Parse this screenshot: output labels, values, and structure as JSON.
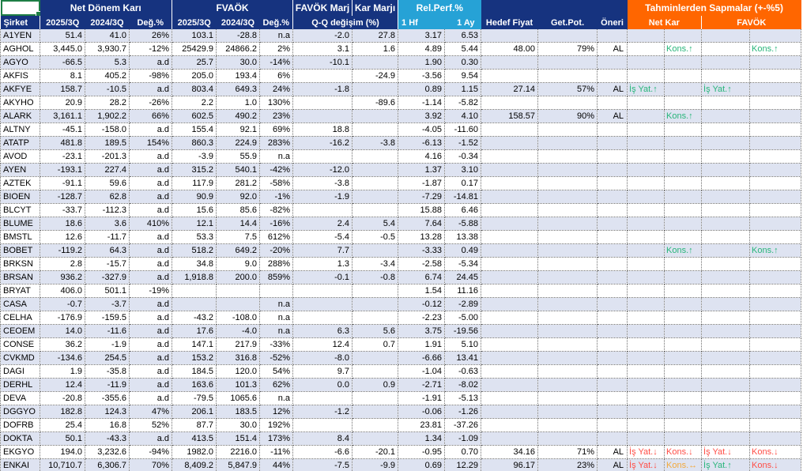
{
  "app": {
    "selected_cell": "A1"
  },
  "colors": {
    "header_navy": "#16337F",
    "header_cyan": "#26A2D6",
    "header_orange": "#FF6600",
    "row_band": "#DEE3F1",
    "deviation_up_green": "#28B57A",
    "deviation_down_red": "#FF4D45",
    "deviation_flat_amber": "#F2A93C",
    "selection_border_green": "#1E7E45"
  },
  "header": {
    "groups": {
      "net_donem_kari": "Net Dönem Karı",
      "fvaok": "FVAÖK",
      "favok_marj": "FAVÖK Marj",
      "kar_marji": "Kar Marjı",
      "rel_perf": "Rel.Perf.%",
      "tahmin": "Tahminlerden Sapmalar (+-%5)"
    },
    "cols": {
      "sirket": "Şirket",
      "q2025": "2025/3Q",
      "q2024": "2024/3Q",
      "deg": "Değ.%",
      "qq": "Q-Q değişim (%)",
      "hf1": "1 Hf",
      "ay1": "1 Ay",
      "hedef": "Hedef Fiyat",
      "getpot": "Get.Pot.",
      "oneri": "Öneri",
      "net_kar": "Net Kar",
      "favok": "FAVÖK"
    }
  },
  "rows": [
    {
      "co": "A1YEN",
      "nk25": "51.4",
      "nk24": "41.0",
      "nkd": "26%",
      "fv25": "103.1",
      "fv24": "-28.8",
      "fvd": "n.a",
      "fm": "-2.0",
      "km": "27.8",
      "w1": "3.17",
      "m1": "6.53",
      "tp": "",
      "pot": "",
      "rec": ""
    },
    {
      "co": "AGHOL",
      "nk25": "3,445.0",
      "nk24": "3,930.7",
      "nkd": "-12%",
      "fv25": "25429.9",
      "fv24": "24866.2",
      "fvd": "2%",
      "fm": "3.1",
      "km": "1.6",
      "w1": "4.89",
      "m1": "5.44",
      "tp": "48.00",
      "pot": "79%",
      "rec": "AL",
      "sap": [
        null,
        {
          "t": "Kons.↑",
          "c": "g"
        },
        null,
        {
          "t": "Kons.↑",
          "c": "g"
        }
      ]
    },
    {
      "co": "AGYO",
      "nk25": "-66.5",
      "nk24": "5.3",
      "nkd": "a.d",
      "fv25": "25.7",
      "fv24": "30.0",
      "fvd": "-14%",
      "fm": "-10.1",
      "km": "",
      "w1": "1.90",
      "m1": "0.30",
      "tp": "",
      "pot": "",
      "rec": ""
    },
    {
      "co": "AKFIS",
      "nk25": "8.1",
      "nk24": "405.2",
      "nkd": "-98%",
      "fv25": "205.0",
      "fv24": "193.4",
      "fvd": "6%",
      "fm": "",
      "km": "-24.9",
      "w1": "-3.56",
      "m1": "9.54",
      "tp": "",
      "pot": "",
      "rec": ""
    },
    {
      "co": "AKFYE",
      "nk25": "158.7",
      "nk24": "-10.5",
      "nkd": "a.d",
      "fv25": "803.4",
      "fv24": "649.3",
      "fvd": "24%",
      "fm": "-1.8",
      "km": "",
      "w1": "0.89",
      "m1": "1.15",
      "tp": "27.14",
      "pot": "57%",
      "rec": "AL",
      "sap": [
        {
          "t": "İş Yat.↑",
          "c": "g"
        },
        null,
        {
          "t": "İş Yat.↑",
          "c": "g"
        },
        null
      ]
    },
    {
      "co": "AKYHO",
      "nk25": "20.9",
      "nk24": "28.2",
      "nkd": "-26%",
      "fv25": "2.2",
      "fv24": "1.0",
      "fvd": "130%",
      "fm": "",
      "km": "-89.6",
      "w1": "-1.14",
      "m1": "-5.82",
      "tp": "",
      "pot": "",
      "rec": ""
    },
    {
      "co": "ALARK",
      "nk25": "3,161.1",
      "nk24": "1,902.2",
      "nkd": "66%",
      "fv25": "602.5",
      "fv24": "490.2",
      "fvd": "23%",
      "fm": "",
      "km": "",
      "w1": "3.92",
      "m1": "4.10",
      "tp": "158.57",
      "pot": "90%",
      "rec": "AL",
      "sap": [
        null,
        {
          "t": "Kons.↑",
          "c": "g"
        },
        null,
        null
      ]
    },
    {
      "co": "ALTNY",
      "nk25": "-45.1",
      "nk24": "-158.0",
      "nkd": "a.d",
      "fv25": "155.4",
      "fv24": "92.1",
      "fvd": "69%",
      "fm": "18.8",
      "km": "",
      "w1": "-4.05",
      "m1": "-11.60",
      "tp": "",
      "pot": "",
      "rec": ""
    },
    {
      "co": "ATATP",
      "nk25": "481.8",
      "nk24": "189.5",
      "nkd": "154%",
      "fv25": "860.3",
      "fv24": "224.9",
      "fvd": "283%",
      "fm": "-16.2",
      "km": "-3.8",
      "w1": "-6.13",
      "m1": "-1.52",
      "tp": "",
      "pot": "",
      "rec": ""
    },
    {
      "co": "AVOD",
      "nk25": "-23.1",
      "nk24": "-201.3",
      "nkd": "a.d",
      "fv25": "-3.9",
      "fv24": "55.9",
      "fvd": "n.a",
      "fm": "",
      "km": "",
      "w1": "4.16",
      "m1": "-0.34",
      "tp": "",
      "pot": "",
      "rec": ""
    },
    {
      "co": "AYEN",
      "nk25": "-193.1",
      "nk24": "227.4",
      "nkd": "a.d",
      "fv25": "315.2",
      "fv24": "540.1",
      "fvd": "-42%",
      "fm": "-12.0",
      "km": "",
      "w1": "1.37",
      "m1": "3.10",
      "tp": "",
      "pot": "",
      "rec": ""
    },
    {
      "co": "AZTEK",
      "nk25": "-91.1",
      "nk24": "59.6",
      "nkd": "a.d",
      "fv25": "117.9",
      "fv24": "281.2",
      "fvd": "-58%",
      "fm": "-3.8",
      "km": "",
      "w1": "-1.87",
      "m1": "0.17",
      "tp": "",
      "pot": "",
      "rec": ""
    },
    {
      "co": "BIOEN",
      "nk25": "-128.7",
      "nk24": "62.8",
      "nkd": "a.d",
      "fv25": "90.9",
      "fv24": "92.0",
      "fvd": "-1%",
      "fm": "-1.9",
      "km": "",
      "w1": "-7.29",
      "m1": "-14.81",
      "tp": "",
      "pot": "",
      "rec": ""
    },
    {
      "co": "BLCYT",
      "nk25": "-33.7",
      "nk24": "-112.3",
      "nkd": "a.d",
      "fv25": "15.6",
      "fv24": "85.6",
      "fvd": "-82%",
      "fm": "",
      "km": "",
      "w1": "15.88",
      "m1": "6.46",
      "tp": "",
      "pot": "",
      "rec": ""
    },
    {
      "co": "BLUME",
      "nk25": "18.6",
      "nk24": "3.6",
      "nkd": "410%",
      "fv25": "12.1",
      "fv24": "14.4",
      "fvd": "-16%",
      "fm": "2.4",
      "km": "5.4",
      "w1": "7.64",
      "m1": "-5.88",
      "tp": "",
      "pot": "",
      "rec": ""
    },
    {
      "co": "BMSTL",
      "nk25": "12.6",
      "nk24": "-11.7",
      "nkd": "a.d",
      "fv25": "53.3",
      "fv24": "7.5",
      "fvd": "612%",
      "fm": "-5.4",
      "km": "-0.5",
      "w1": "13.28",
      "m1": "13.38",
      "tp": "",
      "pot": "",
      "rec": ""
    },
    {
      "co": "BOBET",
      "nk25": "-119.2",
      "nk24": "64.3",
      "nkd": "a.d",
      "fv25": "518.2",
      "fv24": "649.2",
      "fvd": "-20%",
      "fm": "7.7",
      "km": "",
      "w1": "-3.33",
      "m1": "0.49",
      "tp": "",
      "pot": "",
      "rec": "",
      "sap": [
        null,
        {
          "t": "Kons.↑",
          "c": "g"
        },
        null,
        {
          "t": "Kons.↑",
          "c": "g"
        }
      ]
    },
    {
      "co": "BRKSN",
      "nk25": "2.8",
      "nk24": "-15.7",
      "nkd": "a.d",
      "fv25": "34.8",
      "fv24": "9.0",
      "fvd": "288%",
      "fm": "1.3",
      "km": "-3.4",
      "w1": "-2.58",
      "m1": "-5.34",
      "tp": "",
      "pot": "",
      "rec": ""
    },
    {
      "co": "BRSAN",
      "nk25": "936.2",
      "nk24": "-327.9",
      "nkd": "a.d",
      "fv25": "1,918.8",
      "fv24": "200.0",
      "fvd": "859%",
      "fm": "-0.1",
      "km": "-0.8",
      "w1": "6.74",
      "m1": "24.45",
      "tp": "",
      "pot": "",
      "rec": ""
    },
    {
      "co": "BRYAT",
      "nk25": "406.0",
      "nk24": "501.1",
      "nkd": "-19%",
      "fv25": "",
      "fv24": "",
      "fvd": "",
      "fm": "",
      "km": "",
      "w1": "1.54",
      "m1": "11.16",
      "tp": "",
      "pot": "",
      "rec": ""
    },
    {
      "co": "CASA",
      "nk25": "-0.7",
      "nk24": "-3.7",
      "nkd": "a.d",
      "fv25": "",
      "fv24": "",
      "fvd": "n.a",
      "fm": "",
      "km": "",
      "w1": "-0.12",
      "m1": "-2.89",
      "tp": "",
      "pot": "",
      "rec": ""
    },
    {
      "co": "CELHA",
      "nk25": "-176.9",
      "nk24": "-159.5",
      "nkd": "a.d",
      "fv25": "-43.2",
      "fv24": "-108.0",
      "fvd": "n.a",
      "fm": "",
      "km": "",
      "w1": "-2.23",
      "m1": "-5.00",
      "tp": "",
      "pot": "",
      "rec": ""
    },
    {
      "co": "CEOEM",
      "nk25": "14.0",
      "nk24": "-11.6",
      "nkd": "a.d",
      "fv25": "17.6",
      "fv24": "-4.0",
      "fvd": "n.a",
      "fm": "6.3",
      "km": "5.6",
      "w1": "3.75",
      "m1": "-19.56",
      "tp": "",
      "pot": "",
      "rec": ""
    },
    {
      "co": "CONSE",
      "nk25": "36.2",
      "nk24": "-1.9",
      "nkd": "a.d",
      "fv25": "147.1",
      "fv24": "217.9",
      "fvd": "-33%",
      "fm": "12.4",
      "km": "0.7",
      "w1": "1.91",
      "m1": "5.10",
      "tp": "",
      "pot": "",
      "rec": ""
    },
    {
      "co": "CVKMD",
      "nk25": "-134.6",
      "nk24": "254.5",
      "nkd": "a.d",
      "fv25": "153.2",
      "fv24": "316.8",
      "fvd": "-52%",
      "fm": "-8.0",
      "km": "",
      "w1": "-6.66",
      "m1": "13.41",
      "tp": "",
      "pot": "",
      "rec": ""
    },
    {
      "co": "DAGI",
      "nk25": "1.9",
      "nk24": "-35.8",
      "nkd": "a.d",
      "fv25": "184.5",
      "fv24": "120.0",
      "fvd": "54%",
      "fm": "9.7",
      "km": "",
      "w1": "-1.04",
      "m1": "-0.63",
      "tp": "",
      "pot": "",
      "rec": ""
    },
    {
      "co": "DERHL",
      "nk25": "12.4",
      "nk24": "-11.9",
      "nkd": "a.d",
      "fv25": "163.6",
      "fv24": "101.3",
      "fvd": "62%",
      "fm": "0.0",
      "km": "0.9",
      "w1": "-2.71",
      "m1": "-8.02",
      "tp": "",
      "pot": "",
      "rec": ""
    },
    {
      "co": "DEVA",
      "nk25": "-20.8",
      "nk24": "-355.6",
      "nkd": "a.d",
      "fv25": "-79.5",
      "fv24": "1065.6",
      "fvd": "n.a",
      "fm": "",
      "km": "",
      "w1": "-1.91",
      "m1": "-5.13",
      "tp": "",
      "pot": "",
      "rec": ""
    },
    {
      "co": "DGGYO",
      "nk25": "182.8",
      "nk24": "124.3",
      "nkd": "47%",
      "fv25": "206.1",
      "fv24": "183.5",
      "fvd": "12%",
      "fm": "-1.2",
      "km": "",
      "w1": "-0.06",
      "m1": "-1.26",
      "tp": "",
      "pot": "",
      "rec": ""
    },
    {
      "co": "DOFRB",
      "nk25": "25.4",
      "nk24": "16.8",
      "nkd": "52%",
      "fv25": "87.7",
      "fv24": "30.0",
      "fvd": "192%",
      "fm": "",
      "km": "",
      "w1": "23.81",
      "m1": "-37.26",
      "tp": "",
      "pot": "",
      "rec": ""
    },
    {
      "co": "DOKTA",
      "nk25": "50.1",
      "nk24": "-43.3",
      "nkd": "a.d",
      "fv25": "413.5",
      "fv24": "151.4",
      "fvd": "173%",
      "fm": "8.4",
      "km": "",
      "w1": "1.34",
      "m1": "-1.09",
      "tp": "",
      "pot": "",
      "rec": ""
    },
    {
      "co": "EKGYO",
      "nk25": "194.0",
      "nk24": "3,232.6",
      "nkd": "-94%",
      "fv25": "1982.0",
      "fv24": "2216.0",
      "fvd": "-11%",
      "fm": "-6.6",
      "km": "-20.1",
      "w1": "-0.95",
      "m1": "0.70",
      "tp": "34.16",
      "pot": "71%",
      "rec": "AL",
      "sap": [
        {
          "t": "İş Yat.↓",
          "c": "r"
        },
        {
          "t": "Kons.↓",
          "c": "r"
        },
        {
          "t": "İş Yat.↓",
          "c": "r"
        },
        {
          "t": "Kons.↓",
          "c": "r"
        }
      ]
    },
    {
      "co": "ENKAI",
      "nk25": "10,710.7",
      "nk24": "6,306.7",
      "nkd": "70%",
      "fv25": "8,409.2",
      "fv24": "5,847.9",
      "fvd": "44%",
      "fm": "-7.5",
      "km": "-9.9",
      "w1": "0.69",
      "m1": "12.29",
      "tp": "96.17",
      "pot": "23%",
      "rec": "AL",
      "sap": [
        {
          "t": "İş Yat.↓",
          "c": "r"
        },
        {
          "t": "Kons.↔",
          "c": "o"
        },
        {
          "t": "İş Yat.↑",
          "c": "g"
        },
        {
          "t": "Kons.↓",
          "c": "r"
        }
      ]
    }
  ]
}
